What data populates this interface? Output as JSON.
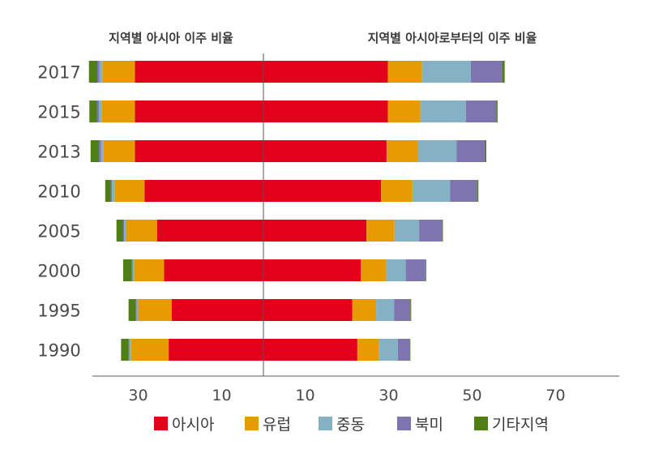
{
  "chart_data": {
    "type": "bar",
    "orientation": "horizontal-diverging",
    "panels": {
      "left": {
        "title": "지역별 아시아 이주 비율"
      },
      "right": {
        "title": "지역별 아시아로부터의 이주 비율"
      }
    },
    "categories": [
      "2017",
      "2015",
      "2013",
      "2010",
      "2005",
      "2000",
      "1995",
      "1990"
    ],
    "x_ticks": {
      "left": [
        30,
        10
      ],
      "right": [
        10,
        30,
        50,
        70
      ]
    },
    "series": [
      {
        "name": "아시아",
        "color": "#e2001a",
        "left": [
          30.8,
          30.8,
          30.8,
          28.5,
          25.5,
          23.8,
          22.0,
          22.7
        ],
        "right": [
          29.8,
          29.8,
          29.5,
          28.2,
          24.7,
          23.3,
          21.3,
          22.5
        ]
      },
      {
        "name": "유럽",
        "color": "#e89b00",
        "left": [
          7.8,
          8.0,
          7.6,
          7.2,
          7.5,
          7.2,
          8.0,
          9.0
        ],
        "right": [
          8.2,
          7.8,
          7.5,
          7.5,
          6.7,
          6.1,
          5.7,
          5.1
        ]
      },
      {
        "name": "중동",
        "color": "#84b1c4",
        "left": [
          0.7,
          0.6,
          0.5,
          0.6,
          0.4,
          0.3,
          0.4,
          0.4
        ],
        "right": [
          11.7,
          10.9,
          9.3,
          9.0,
          5.9,
          4.7,
          4.3,
          4.6
        ]
      },
      {
        "name": "북미",
        "color": "#7e74b0",
        "left": [
          0.5,
          0.5,
          0.5,
          0.3,
          0.2,
          0.2,
          0.2,
          0.2
        ],
        "right": [
          7.5,
          7.3,
          6.8,
          6.5,
          5.5,
          4.7,
          3.9,
          2.8
        ]
      },
      {
        "name": "기타지역",
        "color": "#4f7f12",
        "left": [
          2.0,
          1.8,
          2.0,
          1.3,
          1.6,
          2.1,
          1.7,
          1.8
        ],
        "right": [
          0.6,
          0.3,
          0.3,
          0.3,
          0.2,
          0.2,
          0.2,
          0.2
        ]
      }
    ],
    "legend_position": "bottom",
    "grid": false
  }
}
